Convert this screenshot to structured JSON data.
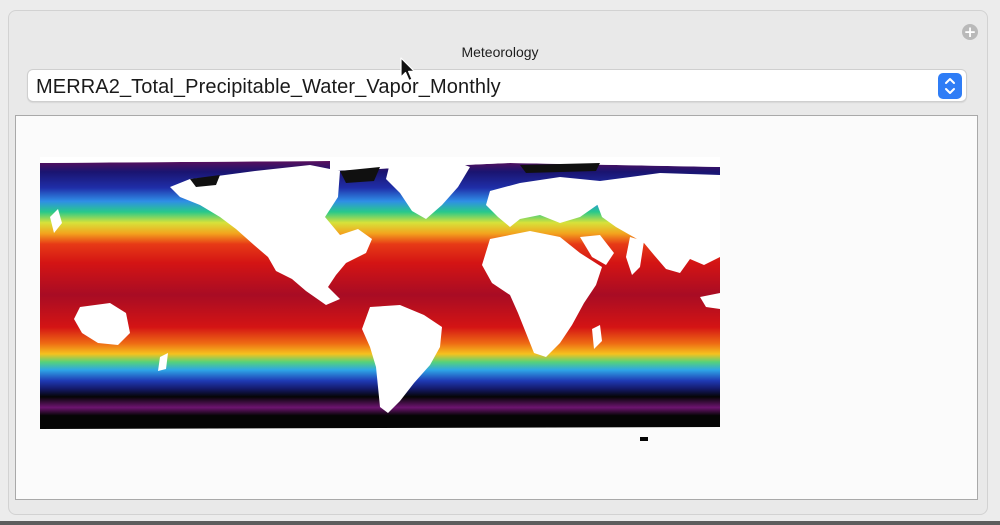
{
  "section": {
    "title": "Meteorology"
  },
  "layer_select": {
    "value": "MERRA2_Total_Precipitable_Water_Vapor_Monthly"
  },
  "colors": {
    "accent": "#2f7df6",
    "panel": "#e9e9e9",
    "frame": "#fbfbfb"
  },
  "icons": {
    "add": "plus-circle-icon",
    "stepper": "up-down-chevron-icon",
    "cursor": "mouse-pointer-icon"
  },
  "add_glyph": "+"
}
